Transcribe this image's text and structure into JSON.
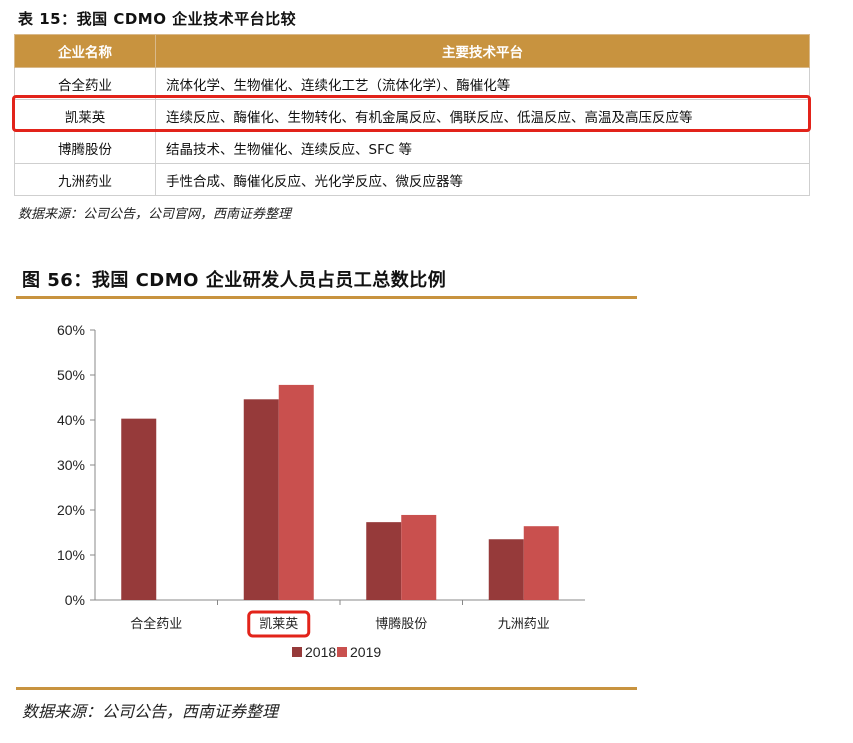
{
  "table": {
    "title": "表 15：我国 CDMO 企业技术平台比较",
    "headers": [
      "企业名称",
      "主要技术平台"
    ],
    "rows": [
      {
        "name": "合全药业",
        "platform": "流体化学、生物催化、连续化工艺（流体化学）、酶催化等"
      },
      {
        "name": "凯莱英",
        "platform": "连续反应、酶催化、生物转化、有机金属反应、偶联反应、低温反应、高温及高压反应等"
      },
      {
        "name": "博腾股份",
        "platform": "结晶技术、生物催化、连续反应、SFC 等"
      },
      {
        "name": "九洲药业",
        "platform": "手性合成、酶催化反应、光化学反应、微反应器等"
      }
    ],
    "highlighted_row": "凯莱英",
    "source": "数据来源：公司公告，公司官网，西南证券整理"
  },
  "figure": {
    "title": "图 56：我国 CDMO 企业研发人员占员工总数比例",
    "source": "数据来源：公司公告，西南证券整理"
  },
  "colors": {
    "accent": "#c8933f",
    "highlight": "#e2231a",
    "series_2018": "#963a3a",
    "series_2019": "#c9504e"
  },
  "chart_data": {
    "type": "bar",
    "categories": [
      "合全药业",
      "凯莱英",
      "博腾股份",
      "九洲药业"
    ],
    "series": [
      {
        "name": "2018",
        "values": [
          40.3,
          44.6,
          17.3,
          13.5
        ]
      },
      {
        "name": "2019",
        "values": [
          null,
          47.8,
          18.9,
          16.4
        ]
      }
    ],
    "ylim": [
      0,
      60
    ],
    "yticks": [
      "0%",
      "10%",
      "20%",
      "30%",
      "40%",
      "50%",
      "60%"
    ],
    "grid": false,
    "legend": "bottom",
    "highlighted_category": "凯莱英"
  }
}
